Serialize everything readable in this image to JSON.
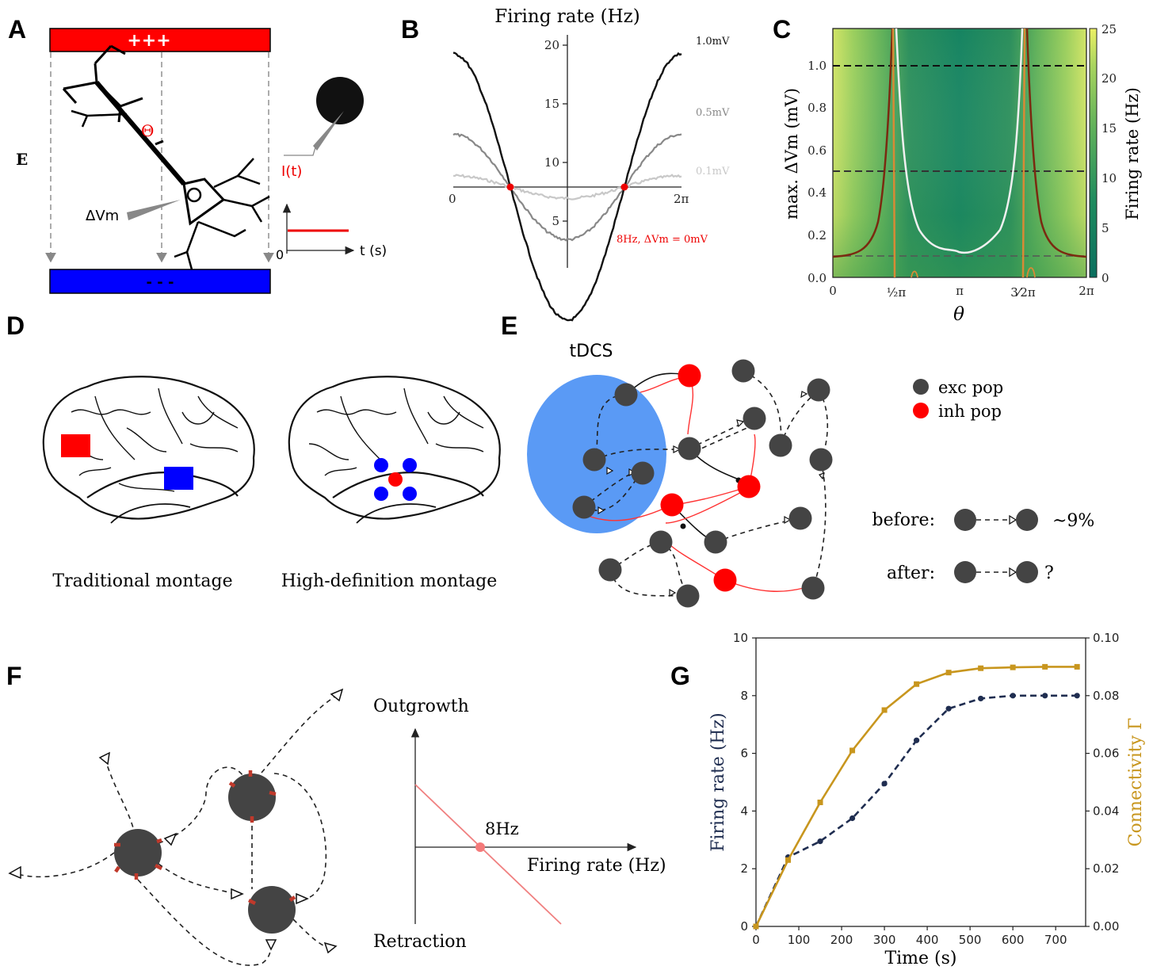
{
  "panel_labels": {
    "a": "A",
    "b": "B",
    "c": "C",
    "d": "D",
    "e": "E",
    "f": "F",
    "g": "G"
  },
  "panel_a": {
    "anode_text": "+++",
    "cathode_text": "- - -",
    "field_label": "E",
    "theta_label": "Θ",
    "dvm_label": "ΔVm",
    "current_label": "I(t)",
    "time_zero": "0",
    "time_axis": "t (s)",
    "anode_color": "#ff0000",
    "cathode_color": "#0000ff"
  },
  "panel_b": {
    "title": "Firing rate (Hz)",
    "crossing_label": "8Hz, ΔVm = 0mV",
    "y_ticks": [
      "5",
      "10",
      "15",
      "20"
    ],
    "x_ticks": [
      "0",
      "2π"
    ],
    "series_labels": [
      "1.0mV",
      "0.5mV",
      "0.1mV"
    ],
    "colors": [
      "#111111",
      "#888888",
      "#c8c8c8"
    ]
  },
  "panel_c": {
    "ylabel": "max. ΔVm (mV)",
    "xlabel": "θ",
    "cbar_label": "Firing rate (Hz)",
    "y_ticks": [
      "0.0",
      "0.2",
      "0.4",
      "0.6",
      "0.8",
      "1.0"
    ],
    "x_ticks": [
      "0",
      "½π",
      "π",
      "3⁄2π",
      "2π"
    ],
    "cbar_ticks": [
      "0",
      "5",
      "10",
      "15",
      "20",
      "25"
    ],
    "ylim": [
      0,
      1.18
    ],
    "cbar_range": [
      0,
      25
    ],
    "dashed_levels": [
      1.0,
      0.5,
      0.1
    ]
  },
  "panel_d": {
    "left_caption": "Traditional montage",
    "right_caption": "High-definition montage"
  },
  "panel_e": {
    "tdcs_label": "tDCS",
    "legend_exc": "exc pop",
    "legend_inh": "inh pop",
    "before_label": "before:",
    "before_value": "~9%",
    "after_label": "after:",
    "after_value": "?",
    "exc_color": "#444444",
    "inh_color": "#ff0000",
    "field_color": "#5a9af5"
  },
  "panel_f": {
    "y_top": "Outgrowth",
    "y_bottom": "Retraction",
    "x_label": "Firing rate (Hz)",
    "setpoint_label": "8Hz",
    "line_color": "#f08080"
  },
  "chart_data": {
    "type": "line",
    "x": [
      0,
      75,
      150,
      225,
      300,
      375,
      450,
      525,
      600,
      675,
      750
    ],
    "series": [
      {
        "axis": "left",
        "color": "#1f2d50",
        "style": "dashed",
        "values": [
          0,
          2.4,
          2.95,
          3.75,
          4.95,
          6.45,
          7.55,
          7.9,
          8.0,
          8.0,
          8.0
        ]
      },
      {
        "axis": "right",
        "color": "#c8961e",
        "style": "solid",
        "values": [
          0,
          0.023,
          0.043,
          0.061,
          0.075,
          0.084,
          0.088,
          0.0895,
          0.0898,
          0.09,
          0.09
        ]
      }
    ],
    "xlabel": "Time (s)",
    "ylabel": "Firing rate (Hz)",
    "ylabel_right": "Connectivity Γ",
    "xlim": [
      0,
      770
    ],
    "ylim": [
      0,
      10
    ],
    "ylim_right": [
      0,
      0.1
    ],
    "x_ticks": [
      "0",
      "100",
      "200",
      "300",
      "400",
      "500",
      "600",
      "700"
    ],
    "y_ticks": [
      "0",
      "2",
      "4",
      "6",
      "8",
      "10"
    ],
    "y_ticks_right": [
      "0.00",
      "0.02",
      "0.04",
      "0.06",
      "0.08",
      "0.10"
    ]
  }
}
